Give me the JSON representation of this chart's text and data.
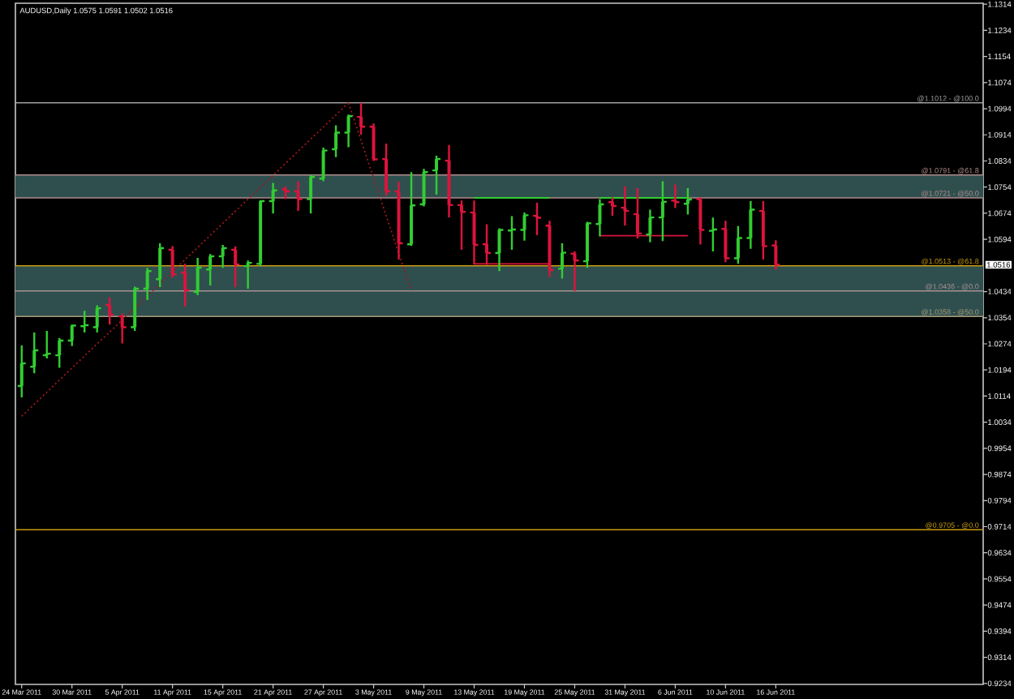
{
  "chart_data": {
    "type": "candlestick",
    "title": "AUDUSD,Daily 1.0575 1.0591 1.0502 1.0516",
    "categories": [
      "24 Mar 2011",
      null,
      null,
      null,
      "30 Mar 2011",
      null,
      null,
      null,
      "5 Apr 2011",
      null,
      null,
      null,
      "11 Apr 2011",
      null,
      null,
      null,
      "15 Apr 2011",
      null,
      null,
      null,
      "21 Apr 2011",
      null,
      null,
      null,
      "27 Apr 2011",
      null,
      null,
      null,
      "3 May 2011",
      null,
      null,
      null,
      "9 May 2011",
      null,
      null,
      null,
      "13 May 2011",
      null,
      null,
      null,
      "19 May 2011",
      null,
      null,
      null,
      "25 May 2011",
      null,
      null,
      null,
      "31 May 2011",
      null,
      null,
      null,
      "6 Jun 2011",
      null,
      null,
      null,
      "10 Jun 2011",
      null,
      null,
      null,
      "16 Jun 2011",
      null,
      null,
      null,
      null,
      null,
      null,
      null,
      null,
      null,
      null,
      null,
      null,
      null,
      null,
      null,
      null
    ],
    "ohlc": [
      [
        1.0145,
        1.0269,
        1.011,
        1.0214
      ],
      [
        1.0204,
        1.0309,
        1.0184,
        1.0254
      ],
      [
        1.0239,
        1.0314,
        1.0229,
        1.0244
      ],
      [
        1.0239,
        1.0292,
        1.0201,
        1.0284
      ],
      [
        1.0284,
        1.0333,
        1.0267,
        1.033
      ],
      [
        1.0328,
        1.0375,
        1.0309,
        1.0331
      ],
      [
        1.0325,
        1.0392,
        1.0309,
        1.0383
      ],
      [
        1.0393,
        1.0416,
        1.0333,
        1.0363
      ],
      [
        1.0358,
        1.0367,
        1.0275,
        1.0325
      ],
      [
        1.0325,
        1.0449,
        1.0314,
        1.0443
      ],
      [
        1.0443,
        1.0507,
        1.0408,
        1.0497
      ],
      [
        1.0472,
        1.0582,
        1.0448,
        1.0567
      ],
      [
        1.0562,
        1.0573,
        1.0477,
        1.0487
      ],
      [
        1.0492,
        1.0519,
        1.0388,
        1.0438
      ],
      [
        1.0433,
        1.0537,
        1.0423,
        1.0507
      ],
      [
        1.0502,
        1.0549,
        1.0453,
        1.0542
      ],
      [
        1.0542,
        1.0577,
        1.0507,
        1.0567
      ],
      [
        1.0562,
        1.0572,
        1.0448,
        1.0517
      ],
      [
        1.0512,
        1.0529,
        1.0443,
        1.0522
      ],
      [
        1.0519,
        1.0714,
        1.0512,
        1.0711
      ],
      [
        1.0711,
        1.0767,
        1.0673,
        1.0744
      ],
      [
        1.0747,
        1.0756,
        1.0717,
        1.0741
      ],
      [
        1.0741,
        1.0772,
        1.0681,
        1.0717
      ],
      [
        1.0717,
        1.0792,
        1.0673,
        1.0785
      ],
      [
        1.078,
        1.0875,
        1.0772,
        1.0866
      ],
      [
        1.087,
        1.0943,
        1.0846,
        1.0921
      ],
      [
        1.0921,
        1.0976,
        1.0876,
        1.0971
      ],
      [
        1.0969,
        1.1012,
        1.0915,
        1.0939
      ],
      [
        1.0939,
        1.0949,
        1.0834,
        1.0839
      ],
      [
        1.084,
        1.0887,
        1.0728,
        1.0741
      ],
      [
        1.0741,
        1.077,
        1.0532,
        1.0582
      ],
      [
        1.0579,
        1.08,
        1.0574,
        1.0698
      ],
      [
        1.0701,
        1.081,
        1.0695,
        1.08
      ],
      [
        1.0805,
        1.085,
        1.0731,
        1.084
      ],
      [
        1.0835,
        1.0883,
        1.0661,
        1.0699
      ],
      [
        1.0699,
        1.0713,
        1.0562,
        1.0678
      ],
      [
        1.0676,
        1.0713,
        1.0517,
        1.0577
      ],
      [
        1.0579,
        1.064,
        1.0516,
        1.0552
      ],
      [
        1.0552,
        1.0628,
        1.0497,
        1.0623
      ],
      [
        1.0621,
        1.0665,
        1.0562,
        1.0624
      ],
      [
        1.0623,
        1.0676,
        1.059,
        1.0668
      ],
      [
        1.0666,
        1.0706,
        1.0607,
        1.066
      ],
      [
        1.0636,
        1.0651,
        1.0479,
        1.05
      ],
      [
        1.0504,
        1.0582,
        1.0474,
        1.0553
      ],
      [
        1.055,
        1.0557,
        1.0436,
        1.0529
      ],
      [
        1.0527,
        1.0648,
        1.0507,
        1.0643
      ],
      [
        1.0641,
        1.0717,
        1.0603,
        1.0701
      ],
      [
        1.0708,
        1.0722,
        1.0666,
        1.0696
      ],
      [
        1.0691,
        1.0756,
        1.0636,
        1.0681
      ],
      [
        1.0671,
        1.0751,
        1.0597,
        1.0612
      ],
      [
        1.0609,
        1.0685,
        1.0585,
        1.0661
      ],
      [
        1.0661,
        1.0772,
        1.0589,
        1.0709
      ],
      [
        1.0713,
        1.0762,
        1.069,
        1.0708
      ],
      [
        1.0703,
        1.0751,
        1.067,
        1.0716
      ],
      [
        1.0717,
        1.0722,
        1.0578,
        1.0623
      ],
      [
        1.062,
        1.0661,
        1.0557,
        1.0624
      ],
      [
        1.0626,
        1.0651,
        1.0524,
        1.0536
      ],
      [
        1.0536,
        1.0635,
        1.0519,
        1.0598
      ],
      [
        1.0598,
        1.0711,
        1.0565,
        1.0685
      ],
      [
        1.0681,
        1.0711,
        1.0532,
        1.0573
      ],
      [
        1.0575,
        1.0591,
        1.0502,
        1.0516
      ],
      null,
      null,
      null,
      null,
      null,
      null,
      null,
      null,
      null,
      null,
      null,
      null,
      null,
      null,
      null,
      null
    ],
    "colors": [
      "#32cd32",
      "#32cd32",
      "#32cd32",
      "#32cd32",
      "#32cd32",
      "#32cd32",
      "#32cd32",
      "#dc143c",
      "#dc143c",
      "#32cd32",
      "#32cd32",
      "#32cd32",
      "#dc143c",
      "#dc143c",
      "#32cd32",
      "#32cd32",
      "#32cd32",
      "#dc143c",
      "#32cd32",
      "#32cd32",
      "#32cd32",
      "#dc143c",
      "#dc143c",
      "#32cd32",
      "#32cd32",
      "#32cd32",
      "#32cd32",
      "#dc143c",
      "#dc143c",
      "#dc143c",
      "#dc143c",
      "#32cd32",
      "#32cd32",
      "#32cd32",
      "#dc143c",
      "#dc143c",
      "#dc143c",
      "#dc143c",
      "#32cd32",
      "#32cd32",
      "#32cd32",
      "#dc143c",
      "#dc143c",
      "#32cd32",
      "#dc143c",
      "#32cd32",
      "#32cd32",
      "#dc143c",
      "#dc143c",
      "#dc143c",
      "#32cd32",
      "#32cd32",
      "#dc143c",
      "#32cd32",
      "#dc143c",
      "#32cd32",
      "#dc143c",
      "#32cd32",
      "#32cd32",
      "#dc143c",
      "#dc143c",
      null,
      null,
      null,
      null,
      null,
      null,
      null,
      null,
      null,
      null,
      null,
      null,
      null,
      null,
      null,
      null
    ],
    "series": [
      {
        "type": "line",
        "color": "#a01818",
        "line_style": "dotted",
        "values": [
          1.0052,
          1.0089,
          1.0126,
          1.0163,
          1.02,
          1.0237,
          1.0274,
          1.031,
          1.0347,
          1.0384,
          1.0421,
          1.0458,
          1.0495,
          1.0532,
          1.0569,
          1.0606,
          1.0643,
          1.068,
          1.0717,
          1.0754,
          1.079,
          1.0827,
          1.0864,
          1.0901,
          1.0938,
          1.0975,
          1.1012,
          null,
          null,
          null,
          null,
          null,
          null,
          null,
          null,
          null,
          null,
          null,
          null,
          null,
          null,
          null,
          null,
          null,
          null,
          null,
          null,
          null,
          null,
          null,
          null,
          null,
          null,
          null,
          null,
          null,
          null,
          null,
          null,
          null,
          null,
          null,
          null,
          null,
          null,
          null,
          null,
          null,
          null,
          null,
          null,
          null,
          null,
          null,
          null,
          null,
          null
        ]
      },
      {
        "type": "line",
        "color": "#a01818",
        "line_style": "dotted",
        "values": [
          null,
          null,
          null,
          null,
          null,
          null,
          null,
          null,
          null,
          null,
          null,
          null,
          null,
          null,
          null,
          null,
          null,
          null,
          null,
          null,
          null,
          null,
          null,
          null,
          null,
          null,
          1.1012,
          1.0897,
          1.0782,
          1.0666,
          1.0551,
          1.0436,
          null,
          null,
          null,
          null,
          null,
          null,
          null,
          null,
          null,
          null,
          null,
          null,
          null,
          null,
          null,
          null,
          null,
          null,
          null,
          null,
          null,
          null,
          null,
          null,
          null,
          null,
          null,
          null,
          null,
          null,
          null,
          null,
          null,
          null,
          null,
          null,
          null,
          null,
          null,
          null,
          null,
          null,
          null,
          null,
          null
        ]
      },
      {
        "type": "line",
        "color": "#32cd32",
        "values": [
          null,
          null,
          null,
          null,
          null,
          null,
          null,
          null,
          null,
          null,
          null,
          null,
          null,
          null,
          null,
          null,
          null,
          null,
          null,
          null,
          null,
          null,
          null,
          null,
          null,
          null,
          null,
          null,
          null,
          null,
          null,
          null,
          null,
          null,
          null,
          null,
          1.0721,
          1.0721,
          1.0721,
          1.0721,
          1.0721,
          1.0721,
          1.0721,
          null,
          null,
          null,
          null,
          null,
          null,
          null,
          null,
          null,
          null,
          null,
          null,
          null,
          null,
          null,
          null,
          null,
          null,
          null,
          null,
          null,
          null,
          null,
          null,
          null,
          null,
          null,
          null,
          null,
          null,
          null,
          null,
          null,
          null
        ]
      },
      {
        "type": "line",
        "color": "#dc143c",
        "values": [
          null,
          null,
          null,
          null,
          null,
          null,
          null,
          null,
          null,
          null,
          null,
          null,
          null,
          null,
          null,
          null,
          null,
          null,
          null,
          null,
          null,
          null,
          null,
          null,
          null,
          null,
          null,
          null,
          null,
          null,
          null,
          null,
          null,
          null,
          null,
          null,
          1.0519,
          1.0519,
          1.0519,
          1.0519,
          1.0519,
          1.0519,
          1.0519,
          null,
          null,
          null,
          null,
          null,
          null,
          null,
          null,
          null,
          null,
          null,
          null,
          null,
          null,
          null,
          null,
          null,
          null,
          null,
          null,
          null,
          null,
          null,
          null,
          null,
          null,
          null,
          null,
          null,
          null,
          null,
          null,
          null,
          null
        ]
      },
      {
        "type": "line",
        "color": "#32cd32",
        "values": [
          null,
          null,
          null,
          null,
          null,
          null,
          null,
          null,
          null,
          null,
          null,
          null,
          null,
          null,
          null,
          null,
          null,
          null,
          null,
          null,
          null,
          null,
          null,
          null,
          null,
          null,
          null,
          null,
          null,
          null,
          null,
          null,
          null,
          null,
          null,
          null,
          null,
          null,
          null,
          null,
          null,
          null,
          null,
          null,
          null,
          null,
          1.0721,
          1.0721,
          1.0721,
          1.0721,
          1.0721,
          1.0721,
          1.0721,
          1.0721,
          null,
          null,
          null,
          null,
          null,
          null,
          null,
          null,
          null,
          null,
          null,
          null,
          null,
          null,
          null,
          null,
          null,
          null,
          null,
          null,
          null,
          null,
          null
        ]
      },
      {
        "type": "line",
        "color": "#dc143c",
        "values": [
          null,
          null,
          null,
          null,
          null,
          null,
          null,
          null,
          null,
          null,
          null,
          null,
          null,
          null,
          null,
          null,
          null,
          null,
          null,
          null,
          null,
          null,
          null,
          null,
          null,
          null,
          null,
          null,
          null,
          null,
          null,
          null,
          null,
          null,
          null,
          null,
          null,
          null,
          null,
          null,
          null,
          null,
          null,
          null,
          null,
          null,
          1.0605,
          1.0605,
          1.0605,
          1.0605,
          1.0605,
          1.0605,
          1.0605,
          1.0605,
          null,
          null,
          null,
          null,
          null,
          null,
          null,
          null,
          null,
          null,
          null,
          null,
          null,
          null,
          null,
          null,
          null,
          null,
          null,
          null,
          null,
          null,
          null
        ]
      }
    ],
    "ylim": [
      0.9231,
      1.1317
    ],
    "yticks": [
      0.9234,
      0.9314,
      0.9394,
      0.9474,
      0.9554,
      0.9634,
      0.9714,
      0.9794,
      0.9874,
      0.9954,
      1.0034,
      1.0114,
      1.0194,
      1.0274,
      1.0354,
      1.0434,
      1.0594,
      1.0674,
      1.0754,
      1.0834,
      1.0914,
      1.0994,
      1.1074,
      1.1154,
      1.1234,
      1.1314
    ],
    "bands": [
      {
        "axis": "y",
        "from": 1.0721,
        "to": 1.0791,
        "color": "#2f4f4f"
      },
      {
        "axis": "y",
        "from": 1.0358,
        "to": 1.0513,
        "color": "#2f4f4f"
      }
    ],
    "ref_lines": [
      {
        "axis": "y",
        "value": 1.1012,
        "label": "@1.1012 - @100.0",
        "color": "#a0a0a0"
      },
      {
        "axis": "y",
        "value": 1.0791,
        "label": "@1.0791 - @61.8",
        "color": "#b08a8a"
      },
      {
        "axis": "y",
        "value": 1.0721,
        "label": "@1.0721 - @50.0",
        "color": "#b08a8a"
      },
      {
        "axis": "y",
        "value": 1.0513,
        "label": "@1.0513 - @61.8",
        "color": "#c89a10"
      },
      {
        "axis": "y",
        "value": 1.0436,
        "label": "@1.0436 - @0.0",
        "color": "#a89090"
      },
      {
        "axis": "y",
        "value": 1.0358,
        "label": "@1.0358 - @50.0",
        "color": "#a89c78"
      },
      {
        "axis": "y",
        "value": 0.9705,
        "label": "@0.9705 - @0.0",
        "color": "#c89a10"
      }
    ],
    "annotations": [
      "1.0516"
    ]
  }
}
